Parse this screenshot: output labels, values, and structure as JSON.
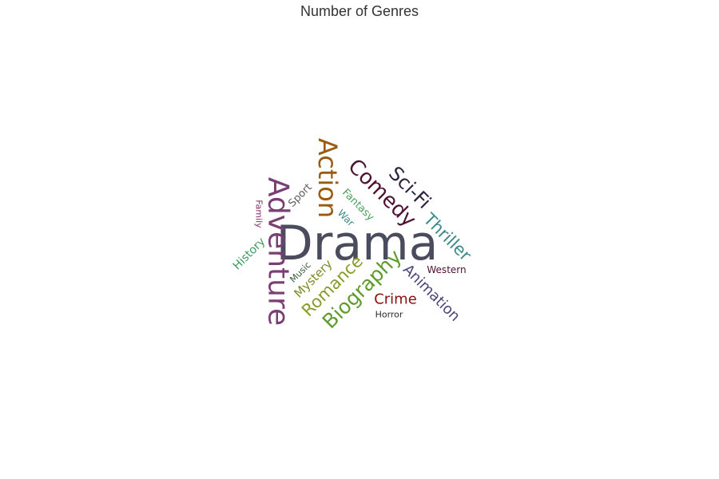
{
  "chart_data": {
    "type": "wordcloud",
    "title": "Number of Genres",
    "words": [
      {
        "text": "Drama",
        "color": "#4b4b5e"
      },
      {
        "text": "Adventure",
        "color": "#7a3e73"
      },
      {
        "text": "Action",
        "color": "#9a5a10"
      },
      {
        "text": "Comedy",
        "color": "#4e1130"
      },
      {
        "text": "Sci-Fi",
        "color": "#2e2440"
      },
      {
        "text": "Thriller",
        "color": "#3e8a8a"
      },
      {
        "text": "Biography",
        "color": "#5f9c2e"
      },
      {
        "text": "Romance",
        "color": "#8a9a28"
      },
      {
        "text": "Animation",
        "color": "#4b4478"
      },
      {
        "text": "Crime",
        "color": "#8a1010"
      },
      {
        "text": "Mystery",
        "color": "#7e8a22"
      },
      {
        "text": "History",
        "color": "#3a9a5a"
      },
      {
        "text": "Fantasy",
        "color": "#4aa05a"
      },
      {
        "text": "Sport",
        "color": "#5e5e5e"
      },
      {
        "text": "War",
        "color": "#3a8a8a"
      },
      {
        "text": "Music",
        "color": "#3a5a3a"
      },
      {
        "text": "Western",
        "color": "#4e1130"
      },
      {
        "text": "Family",
        "color": "#8a2a6a"
      },
      {
        "text": "Horror",
        "color": "#2a2a2a"
      }
    ]
  }
}
